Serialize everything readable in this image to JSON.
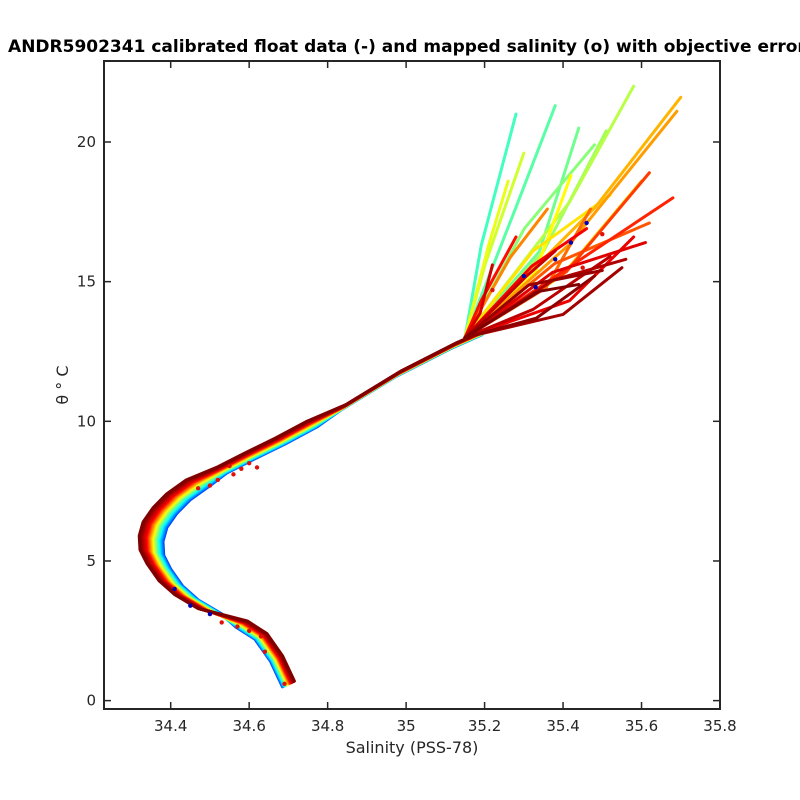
{
  "chart_data": {
    "type": "line",
    "title": "ANDR5902341 calibrated float data (-) and mapped salinity (o) with objective errors",
    "xlabel": "Salinity (PSS-78)",
    "ylabel": "θ ° C",
    "xlim": [
      34.23,
      35.8
    ],
    "ylim": [
      -0.3,
      22.9
    ],
    "x_ticks": [
      34.4,
      34.6,
      34.8,
      35,
      35.2,
      35.4,
      35.6,
      35.8
    ],
    "x_tick_labels": [
      "34.4",
      "34.6",
      "34.8",
      "35",
      "35.2",
      "35.4",
      "35.6",
      "35.8"
    ],
    "y_ticks": [
      0,
      5,
      10,
      15,
      20
    ],
    "y_tick_labels": [
      "0",
      "5",
      "10",
      "15",
      "20"
    ],
    "grid": false,
    "colormap": "jet",
    "colormap_stops": [
      "#00008f",
      "#0000ff",
      "#00ffff",
      "#ffff00",
      "#ff0000",
      "#800000"
    ],
    "core_profile": {
      "x": [
        34.7,
        34.67,
        34.63,
        34.58,
        34.5,
        34.44,
        34.4,
        34.37,
        34.352,
        34.35,
        34.36,
        34.385,
        34.42,
        34.47,
        34.53,
        34.6,
        34.68,
        34.76,
        34.84,
        34.91,
        34.98,
        35.05,
        35.12,
        35.2
      ],
      "y": [
        0.6,
        1.5,
        2.3,
        2.75,
        3.2,
        3.7,
        4.2,
        4.8,
        5.3,
        5.8,
        6.3,
        6.8,
        7.3,
        7.8,
        8.25,
        8.75,
        9.3,
        9.9,
        10.5,
        11.1,
        11.7,
        12.2,
        12.7,
        13.2
      ]
    },
    "upper_fan": {
      "origin": [
        35.15,
        13.0
      ],
      "endpoints": [
        [
          35.28,
          21.0
        ],
        [
          35.38,
          21.3
        ],
        [
          35.44,
          20.5
        ],
        [
          35.48,
          19.9
        ],
        [
          35.51,
          20.4
        ],
        [
          35.58,
          22.0
        ],
        [
          35.3,
          19.6
        ],
        [
          35.26,
          18.6
        ],
        [
          35.42,
          18.8
        ],
        [
          35.52,
          18.1
        ],
        [
          35.6,
          18.6
        ],
        [
          35.7,
          21.6
        ],
        [
          35.69,
          21.1
        ],
        [
          35.36,
          17.6
        ],
        [
          35.47,
          17.6
        ],
        [
          35.62,
          17.1
        ],
        [
          35.62,
          18.9
        ],
        [
          35.68,
          18.0
        ],
        [
          35.28,
          16.6
        ],
        [
          35.46,
          16.9
        ],
        [
          35.58,
          16.6
        ],
        [
          35.61,
          16.4
        ],
        [
          35.22,
          15.6
        ],
        [
          35.38,
          16.1
        ],
        [
          35.52,
          15.9
        ],
        [
          35.56,
          15.8
        ],
        [
          35.55,
          15.5
        ],
        [
          35.5,
          15.4
        ],
        [
          35.48,
          15.2
        ],
        [
          35.44,
          14.9
        ]
      ]
    },
    "mapped_salinity_points": [
      [
        34.55,
        8.4
      ],
      [
        34.58,
        8.3
      ],
      [
        34.62,
        8.35
      ],
      [
        34.52,
        7.9
      ],
      [
        34.47,
        7.6
      ],
      [
        34.5,
        7.7
      ],
      [
        34.56,
        8.1
      ],
      [
        34.6,
        8.5
      ],
      [
        34.53,
        2.8
      ],
      [
        34.57,
        2.65
      ],
      [
        34.6,
        2.5
      ],
      [
        34.63,
        2.3
      ],
      [
        34.5,
        3.1
      ],
      [
        34.45,
        3.4
      ],
      [
        34.41,
        4.0
      ],
      [
        34.64,
        1.75
      ],
      [
        34.69,
        0.6
      ],
      [
        35.46,
        17.1
      ],
      [
        35.5,
        16.7
      ],
      [
        35.42,
        16.4
      ],
      [
        35.38,
        15.8
      ],
      [
        35.45,
        15.5
      ],
      [
        35.3,
        15.2
      ],
      [
        35.33,
        14.8
      ],
      [
        35.22,
        14.7
      ]
    ]
  }
}
